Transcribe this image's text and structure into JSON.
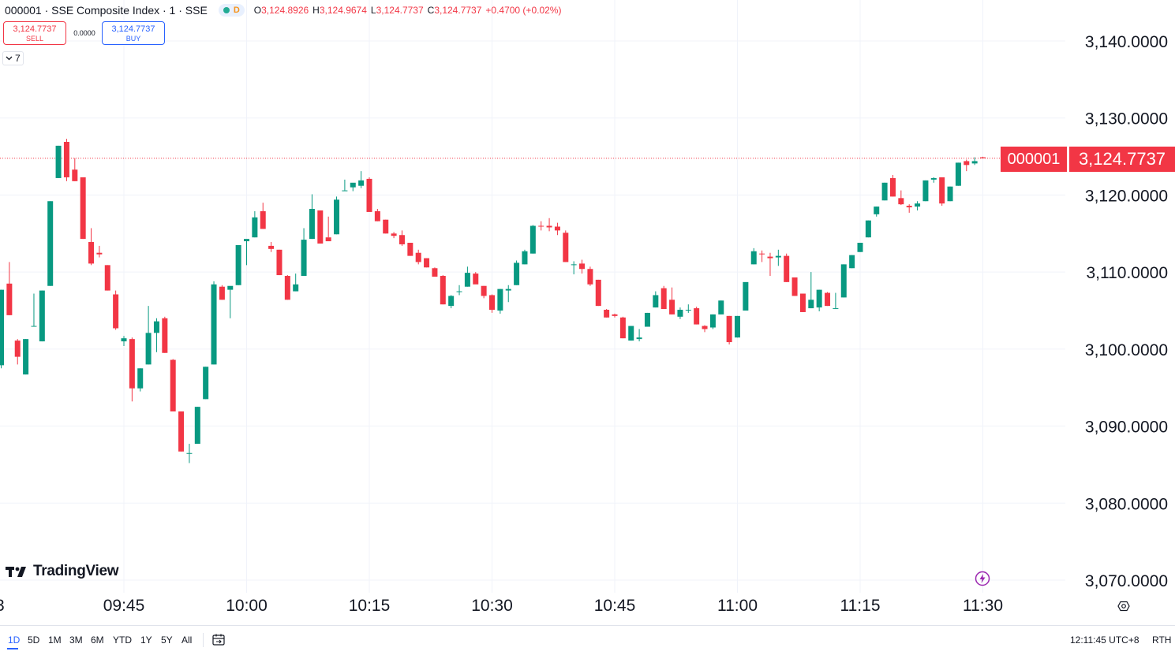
{
  "header": {
    "symbol_title": "000001 · SSE Composite Index · 1 · SSE",
    "market_badge": "D",
    "ohlc": {
      "o_label": "O",
      "o_value": "3,124.8926",
      "h_label": "H",
      "h_value": "3,124.9674",
      "l_label": "L",
      "l_value": "3,124.7737",
      "c_label": "C",
      "c_value": "3,124.7737",
      "change": "+0.4700 (+0.02%)"
    }
  },
  "trade": {
    "sell_price": "3,124.7737",
    "sell_label": "SELL",
    "spread": "0.0000",
    "buy_price": "3,124.7737",
    "buy_label": "BUY"
  },
  "indicators_toggle": {
    "count": "7"
  },
  "logo": {
    "text": "TradingView"
  },
  "price_tag": {
    "symbol": "000001",
    "price": "3,124.7737"
  },
  "bottom": {
    "ranges": [
      "1D",
      "5D",
      "1M",
      "3M",
      "6M",
      "YTD",
      "1Y",
      "5Y",
      "All"
    ],
    "active_range": "1D",
    "clock": "12:11:45 UTC+8",
    "session": "RTH"
  },
  "colors": {
    "up": "#089981",
    "down": "#f23645",
    "grid": "#f0f3fa",
    "accent": "#2962ff"
  },
  "chart_data": {
    "type": "candlestick",
    "interval_minutes": 1,
    "x_ticks": [
      "09:45",
      "10:00",
      "10:15",
      "10:30",
      "10:45",
      "11:00",
      "11:15",
      "11:30"
    ],
    "x_tick_partial": "3",
    "y_ticks": [
      "3,140.0000",
      "3,130.0000",
      "3,120.0000",
      "3,110.0000",
      "3,100.0000",
      "3,090.0000",
      "3,080.0000",
      "3,070.0000"
    ],
    "ylim": [
      3068,
      3145
    ],
    "last_price": 3124.7737,
    "grid": true,
    "candles": [
      {
        "t": "09:30",
        "o": 3097.9,
        "h": 3107.7,
        "l": 3097.5,
        "c": 3107.7
      },
      {
        "t": "09:31",
        "o": 3108.5,
        "h": 3111.3,
        "l": 3104.4,
        "c": 3104.4
      },
      {
        "t": "09:32",
        "o": 3101.1,
        "h": 3101.3,
        "l": 3098.0,
        "c": 3099.0
      },
      {
        "t": "09:33",
        "o": 3096.7,
        "h": 3101.3,
        "l": 3096.7,
        "c": 3101.3
      },
      {
        "t": "09:34",
        "o": 3103.0,
        "h": 3107.2,
        "l": 3103.0,
        "c": 3103.0
      },
      {
        "t": "09:35",
        "o": 3101.0,
        "h": 3107.6,
        "l": 3101.0,
        "c": 3107.6
      },
      {
        "t": "09:36",
        "o": 3108.2,
        "h": 3119.2,
        "l": 3108.2,
        "c": 3119.2
      },
      {
        "t": "09:37",
        "o": 3122.2,
        "h": 3126.4,
        "l": 3122.2,
        "c": 3126.4
      },
      {
        "t": "09:38",
        "o": 3126.9,
        "h": 3127.3,
        "l": 3121.8,
        "c": 3122.3
      },
      {
        "t": "09:39",
        "o": 3123.3,
        "h": 3124.8,
        "l": 3121.8,
        "c": 3121.8
      },
      {
        "t": "09:40",
        "o": 3122.3,
        "h": 3122.3,
        "l": 3114.3,
        "c": 3114.3
      },
      {
        "t": "09:41",
        "o": 3113.9,
        "h": 3115.7,
        "l": 3110.9,
        "c": 3111.1
      },
      {
        "t": "09:42",
        "o": 3112.5,
        "h": 3113.4,
        "l": 3111.9,
        "c": 3112.3
      },
      {
        "t": "09:43",
        "o": 3110.9,
        "h": 3110.9,
        "l": 3107.6,
        "c": 3107.6
      },
      {
        "t": "09:44",
        "o": 3107.1,
        "h": 3107.6,
        "l": 3102.5,
        "c": 3102.7
      },
      {
        "t": "09:45",
        "o": 3101.0,
        "h": 3101.7,
        "l": 3100.4,
        "c": 3101.4
      },
      {
        "t": "09:46",
        "o": 3101.3,
        "h": 3101.5,
        "l": 3093.2,
        "c": 3094.9
      },
      {
        "t": "09:47",
        "o": 3094.9,
        "h": 3097.5,
        "l": 3094.5,
        "c": 3097.5
      },
      {
        "t": "09:48",
        "o": 3098.0,
        "h": 3105.6,
        "l": 3098.0,
        "c": 3102.1
      },
      {
        "t": "09:49",
        "o": 3102.1,
        "h": 3104.0,
        "l": 3099.6,
        "c": 3103.6
      },
      {
        "t": "09:50",
        "o": 3104.0,
        "h": 3104.2,
        "l": 3099.5,
        "c": 3099.5
      },
      {
        "t": "09:51",
        "o": 3098.6,
        "h": 3098.7,
        "l": 3091.9,
        "c": 3091.9
      },
      {
        "t": "09:52",
        "o": 3091.9,
        "h": 3091.9,
        "l": 3086.7,
        "c": 3086.7
      },
      {
        "t": "09:53",
        "o": 3086.5,
        "h": 3087.7,
        "l": 3085.2,
        "c": 3086.5
      },
      {
        "t": "09:54",
        "o": 3087.7,
        "h": 3092.5,
        "l": 3087.7,
        "c": 3092.5
      },
      {
        "t": "09:55",
        "o": 3093.5,
        "h": 3097.7,
        "l": 3093.5,
        "c": 3097.7
      },
      {
        "t": "09:56",
        "o": 3098.0,
        "h": 3108.8,
        "l": 3098.0,
        "c": 3108.4
      },
      {
        "t": "09:57",
        "o": 3108.1,
        "h": 3108.3,
        "l": 3106.4,
        "c": 3106.4
      },
      {
        "t": "09:58",
        "o": 3107.7,
        "h": 3107.7,
        "l": 3104.0,
        "c": 3108.2
      },
      {
        "t": "09:59",
        "o": 3108.3,
        "h": 3113.5,
        "l": 3108.3,
        "c": 3113.5
      },
      {
        "t": "10:00",
        "o": 3114.0,
        "h": 3114.0,
        "l": 3110.9,
        "c": 3114.3
      },
      {
        "t": "10:01",
        "o": 3114.5,
        "h": 3117.9,
        "l": 3114.5,
        "c": 3117.1
      },
      {
        "t": "10:02",
        "o": 3117.9,
        "h": 3119.0,
        "l": 3115.6,
        "c": 3115.6
      },
      {
        "t": "10:03",
        "o": 3113.4,
        "h": 3113.9,
        "l": 3112.6,
        "c": 3113.0
      },
      {
        "t": "10:04",
        "o": 3112.9,
        "h": 3112.9,
        "l": 3109.6,
        "c": 3109.6
      },
      {
        "t": "10:05",
        "o": 3109.5,
        "h": 3109.6,
        "l": 3106.4,
        "c": 3106.4
      },
      {
        "t": "10:06",
        "o": 3107.5,
        "h": 3109.8,
        "l": 3107.5,
        "c": 3108.4
      },
      {
        "t": "10:07",
        "o": 3109.5,
        "h": 3115.7,
        "l": 3109.5,
        "c": 3114.2
      },
      {
        "t": "10:08",
        "o": 3114.3,
        "h": 3120.1,
        "l": 3114.3,
        "c": 3118.2
      },
      {
        "t": "10:09",
        "o": 3118.0,
        "h": 3117.9,
        "l": 3113.7,
        "c": 3113.7
      },
      {
        "t": "10:10",
        "o": 3114.5,
        "h": 3117.2,
        "l": 3114.5,
        "c": 3114.0
      },
      {
        "t": "10:11",
        "o": 3114.9,
        "h": 3119.8,
        "l": 3114.9,
        "c": 3119.4
      },
      {
        "t": "10:12",
        "o": 3120.6,
        "h": 3122.0,
        "l": 3120.6,
        "c": 3120.6
      },
      {
        "t": "10:13",
        "o": 3121.0,
        "h": 3121.3,
        "l": 3120.5,
        "c": 3121.6
      },
      {
        "t": "10:14",
        "o": 3121.2,
        "h": 3123.1,
        "l": 3120.9,
        "c": 3121.9
      },
      {
        "t": "10:15",
        "o": 3122.1,
        "h": 3122.3,
        "l": 3117.8,
        "c": 3117.8
      },
      {
        "t": "10:16",
        "o": 3117.9,
        "h": 3118.2,
        "l": 3116.6,
        "c": 3116.6
      },
      {
        "t": "10:17",
        "o": 3116.8,
        "h": 3116.8,
        "l": 3115.0,
        "c": 3115.0
      },
      {
        "t": "10:18",
        "o": 3115.0,
        "h": 3115.2,
        "l": 3114.4,
        "c": 3114.7
      },
      {
        "t": "10:19",
        "o": 3114.8,
        "h": 3115.4,
        "l": 3113.4,
        "c": 3113.6
      },
      {
        "t": "10:20",
        "o": 3113.8,
        "h": 3113.6,
        "l": 3112.1,
        "c": 3112.1
      },
      {
        "t": "10:21",
        "o": 3112.5,
        "h": 3112.9,
        "l": 3111.0,
        "c": 3111.3
      },
      {
        "t": "10:22",
        "o": 3111.8,
        "h": 3111.8,
        "l": 3110.6,
        "c": 3110.6
      },
      {
        "t": "10:23",
        "o": 3110.5,
        "h": 3110.6,
        "l": 3109.4,
        "c": 3109.4
      },
      {
        "t": "10:24",
        "o": 3109.5,
        "h": 3109.6,
        "l": 3105.8,
        "c": 3105.8
      },
      {
        "t": "10:25",
        "o": 3105.6,
        "h": 3107.0,
        "l": 3105.3,
        "c": 3106.9
      },
      {
        "t": "10:26",
        "o": 3107.5,
        "h": 3108.3,
        "l": 3107.0,
        "c": 3107.5
      },
      {
        "t": "10:27",
        "o": 3108.1,
        "h": 3110.7,
        "l": 3108.1,
        "c": 3109.9
      },
      {
        "t": "10:28",
        "o": 3109.8,
        "h": 3110.0,
        "l": 3108.8,
        "c": 3108.4
      },
      {
        "t": "10:29",
        "o": 3108.2,
        "h": 3108.2,
        "l": 3106.6,
        "c": 3106.9
      },
      {
        "t": "10:30",
        "o": 3107.0,
        "h": 3107.1,
        "l": 3104.7,
        "c": 3105.1
      },
      {
        "t": "10:31",
        "o": 3105.0,
        "h": 3107.8,
        "l": 3104.6,
        "c": 3107.8
      },
      {
        "t": "10:32",
        "o": 3107.6,
        "h": 3108.3,
        "l": 3106.1,
        "c": 3107.8
      },
      {
        "t": "10:33",
        "o": 3108.3,
        "h": 3111.5,
        "l": 3108.3,
        "c": 3111.2
      },
      {
        "t": "10:34",
        "o": 3111.0,
        "h": 3112.9,
        "l": 3111.0,
        "c": 3112.7
      },
      {
        "t": "10:35",
        "o": 3112.4,
        "h": 3116.1,
        "l": 3112.4,
        "c": 3116.0
      },
      {
        "t": "10:36",
        "o": 3116.0,
        "h": 3116.6,
        "l": 3115.4,
        "c": 3115.9
      },
      {
        "t": "10:37",
        "o": 3116.0,
        "h": 3117.0,
        "l": 3115.3,
        "c": 3115.8
      },
      {
        "t": "10:38",
        "o": 3115.9,
        "h": 3116.4,
        "l": 3114.8,
        "c": 3115.4
      },
      {
        "t": "10:39",
        "o": 3115.1,
        "h": 3115.4,
        "l": 3111.3,
        "c": 3111.3
      },
      {
        "t": "10:40",
        "o": 3111.0,
        "h": 3111.4,
        "l": 3109.7,
        "c": 3111.0
      },
      {
        "t": "10:41",
        "o": 3111.1,
        "h": 3111.6,
        "l": 3109.8,
        "c": 3110.4
      },
      {
        "t": "10:42",
        "o": 3110.4,
        "h": 3110.7,
        "l": 3108.2,
        "c": 3108.4
      },
      {
        "t": "10:43",
        "o": 3109.0,
        "h": 3109.0,
        "l": 3105.6,
        "c": 3105.6
      },
      {
        "t": "10:44",
        "o": 3105.1,
        "h": 3105.2,
        "l": 3104.1,
        "c": 3104.1
      },
      {
        "t": "10:45",
        "o": 3104.5,
        "h": 3104.6,
        "l": 3104.1,
        "c": 3104.3
      },
      {
        "t": "10:46",
        "o": 3104.1,
        "h": 3104.2,
        "l": 3101.4,
        "c": 3101.4
      },
      {
        "t": "10:47",
        "o": 3101.1,
        "h": 3103.0,
        "l": 3101.1,
        "c": 3103.0
      },
      {
        "t": "10:48",
        "o": 3101.3,
        "h": 3102.6,
        "l": 3101.0,
        "c": 3101.5
      },
      {
        "t": "10:49",
        "o": 3102.9,
        "h": 3104.7,
        "l": 3102.9,
        "c": 3104.7
      },
      {
        "t": "10:50",
        "o": 3105.4,
        "h": 3107.5,
        "l": 3105.4,
        "c": 3107.0
      },
      {
        "t": "10:51",
        "o": 3107.9,
        "h": 3108.2,
        "l": 3105.2,
        "c": 3105.2
      },
      {
        "t": "10:52",
        "o": 3106.4,
        "h": 3108.0,
        "l": 3104.5,
        "c": 3104.5
      },
      {
        "t": "10:53",
        "o": 3104.2,
        "h": 3105.4,
        "l": 3103.9,
        "c": 3105.1
      },
      {
        "t": "10:54",
        "o": 3105.1,
        "h": 3105.8,
        "l": 3104.7,
        "c": 3105.1
      },
      {
        "t": "10:55",
        "o": 3105.3,
        "h": 3105.5,
        "l": 3103.2,
        "c": 3103.2
      },
      {
        "t": "10:56",
        "o": 3103.0,
        "h": 3103.1,
        "l": 3102.2,
        "c": 3102.6
      },
      {
        "t": "10:57",
        "o": 3102.8,
        "h": 3104.5,
        "l": 3102.6,
        "c": 3104.5
      },
      {
        "t": "10:58",
        "o": 3104.5,
        "h": 3106.3,
        "l": 3104.5,
        "c": 3106.3
      },
      {
        "t": "10:59",
        "o": 3104.3,
        "h": 3104.3,
        "l": 3100.6,
        "c": 3100.9
      },
      {
        "t": "11:00",
        "o": 3101.5,
        "h": 3104.3,
        "l": 3101.5,
        "c": 3104.3
      },
      {
        "t": "11:01",
        "o": 3105.0,
        "h": 3108.6,
        "l": 3105.0,
        "c": 3108.7
      },
      {
        "t": "11:02",
        "o": 3111.0,
        "h": 3113.1,
        "l": 3111.0,
        "c": 3112.7
      },
      {
        "t": "11:03",
        "o": 3112.4,
        "h": 3112.8,
        "l": 3111.3,
        "c": 3112.3
      },
      {
        "t": "11:04",
        "o": 3112.0,
        "h": 3112.5,
        "l": 3109.5,
        "c": 3111.8
      },
      {
        "t": "11:05",
        "o": 3111.9,
        "h": 3112.9,
        "l": 3110.8,
        "c": 3112.1
      },
      {
        "t": "11:06",
        "o": 3112.1,
        "h": 3112.4,
        "l": 3108.7,
        "c": 3108.7
      },
      {
        "t": "11:07",
        "o": 3109.3,
        "h": 3109.3,
        "l": 3106.9,
        "c": 3106.9
      },
      {
        "t": "11:08",
        "o": 3107.2,
        "h": 3107.2,
        "l": 3104.8,
        "c": 3104.8
      },
      {
        "t": "11:09",
        "o": 3105.3,
        "h": 3110.0,
        "l": 3105.3,
        "c": 3106.4
      },
      {
        "t": "11:10",
        "o": 3105.4,
        "h": 3107.7,
        "l": 3104.9,
        "c": 3107.7
      },
      {
        "t": "11:11",
        "o": 3107.3,
        "h": 3107.4,
        "l": 3105.6,
        "c": 3105.6
      },
      {
        "t": "11:12",
        "o": 3105.3,
        "h": 3107.3,
        "l": 3105.3,
        "c": 3105.3
      },
      {
        "t": "11:13",
        "o": 3106.7,
        "h": 3111.0,
        "l": 3106.7,
        "c": 3111.0
      },
      {
        "t": "11:14",
        "o": 3110.5,
        "h": 3112.2,
        "l": 3110.5,
        "c": 3112.2
      },
      {
        "t": "11:15",
        "o": 3112.6,
        "h": 3113.8,
        "l": 3112.6,
        "c": 3113.8
      },
      {
        "t": "11:16",
        "o": 3114.5,
        "h": 3116.7,
        "l": 3114.5,
        "c": 3116.7
      },
      {
        "t": "11:17",
        "o": 3117.5,
        "h": 3118.5,
        "l": 3117.2,
        "c": 3118.5
      },
      {
        "t": "11:18",
        "o": 3119.3,
        "h": 3121.6,
        "l": 3119.3,
        "c": 3121.6
      },
      {
        "t": "11:19",
        "o": 3122.2,
        "h": 3122.6,
        "l": 3119.8,
        "c": 3119.8
      },
      {
        "t": "11:20",
        "o": 3119.6,
        "h": 3120.6,
        "l": 3118.7,
        "c": 3118.8
      },
      {
        "t": "11:21",
        "o": 3118.6,
        "h": 3118.8,
        "l": 3117.7,
        "c": 3118.4
      },
      {
        "t": "11:22",
        "o": 3118.5,
        "h": 3119.2,
        "l": 3118.0,
        "c": 3118.9
      },
      {
        "t": "11:23",
        "o": 3119.2,
        "h": 3121.9,
        "l": 3119.2,
        "c": 3121.9
      },
      {
        "t": "11:24",
        "o": 3122.0,
        "h": 3122.3,
        "l": 3121.6,
        "c": 3122.2
      },
      {
        "t": "11:25",
        "o": 3122.3,
        "h": 3122.3,
        "l": 3118.6,
        "c": 3118.9
      },
      {
        "t": "11:26",
        "o": 3119.2,
        "h": 3121.1,
        "l": 3119.2,
        "c": 3121.1
      },
      {
        "t": "11:27",
        "o": 3121.2,
        "h": 3124.2,
        "l": 3121.2,
        "c": 3124.2
      },
      {
        "t": "11:28",
        "o": 3124.4,
        "h": 3124.6,
        "l": 3123.1,
        "c": 3123.9
      },
      {
        "t": "11:29",
        "o": 3124.1,
        "h": 3124.9,
        "l": 3123.9,
        "c": 3124.4
      },
      {
        "t": "11:30",
        "o": 3124.9,
        "h": 3124.97,
        "l": 3124.77,
        "c": 3124.77
      }
    ]
  }
}
